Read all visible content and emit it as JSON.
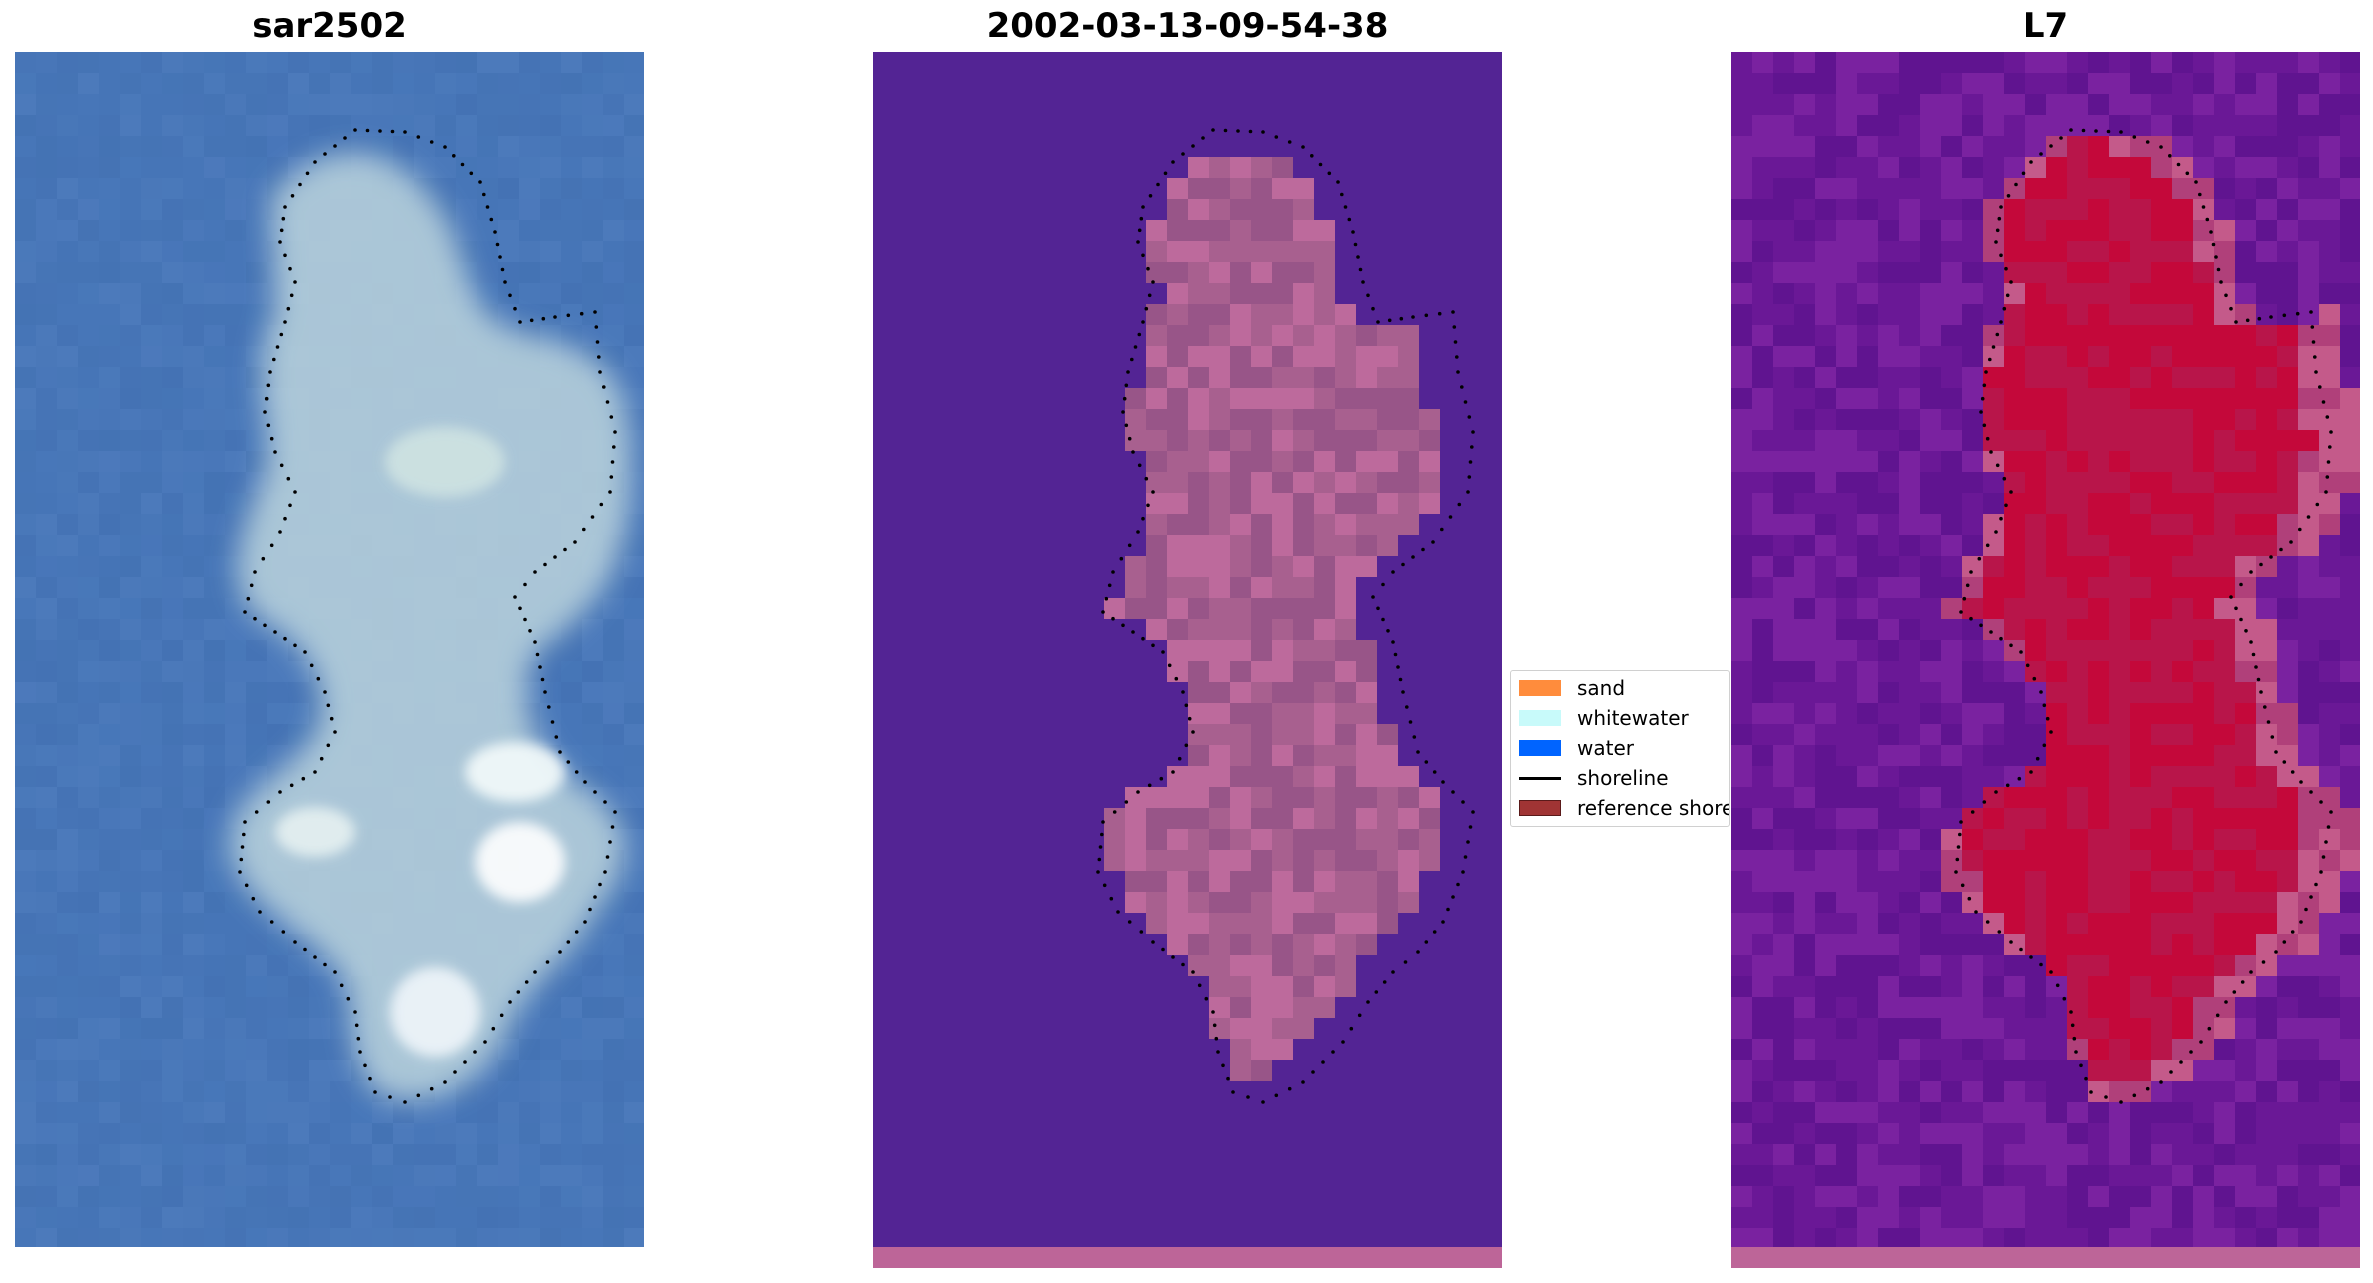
{
  "panels": [
    {
      "title": "sar2502",
      "kind": "rgb-image",
      "bottom_band": false
    },
    {
      "title": "2002-03-13-09-54-38",
      "kind": "classified-image",
      "bottom_band": true,
      "background_color": "#532494",
      "blob_color": "#b06898",
      "band_color": "#bd6598"
    },
    {
      "title": "L7",
      "kind": "index-image",
      "bottom_band": true,
      "background_color": "#6e1a9a",
      "blob_color": "#c4083a",
      "band_color": "#bd6598"
    }
  ],
  "legend": {
    "items": [
      {
        "label": "sand",
        "type": "patch",
        "color": "#ff8c3c"
      },
      {
        "label": "whitewater",
        "type": "patch",
        "color": "#c8fafa"
      },
      {
        "label": "water",
        "type": "patch",
        "color": "#0064ff"
      },
      {
        "label": "shoreline",
        "type": "line",
        "color": "#000000"
      },
      {
        "label": "reference shoreline",
        "type": "patch",
        "color": "#a03434"
      }
    ]
  },
  "colors": {
    "rgb_water": "#4776b8",
    "rgb_foam": "#dfeef0",
    "shoreline_dots": "#000000"
  }
}
